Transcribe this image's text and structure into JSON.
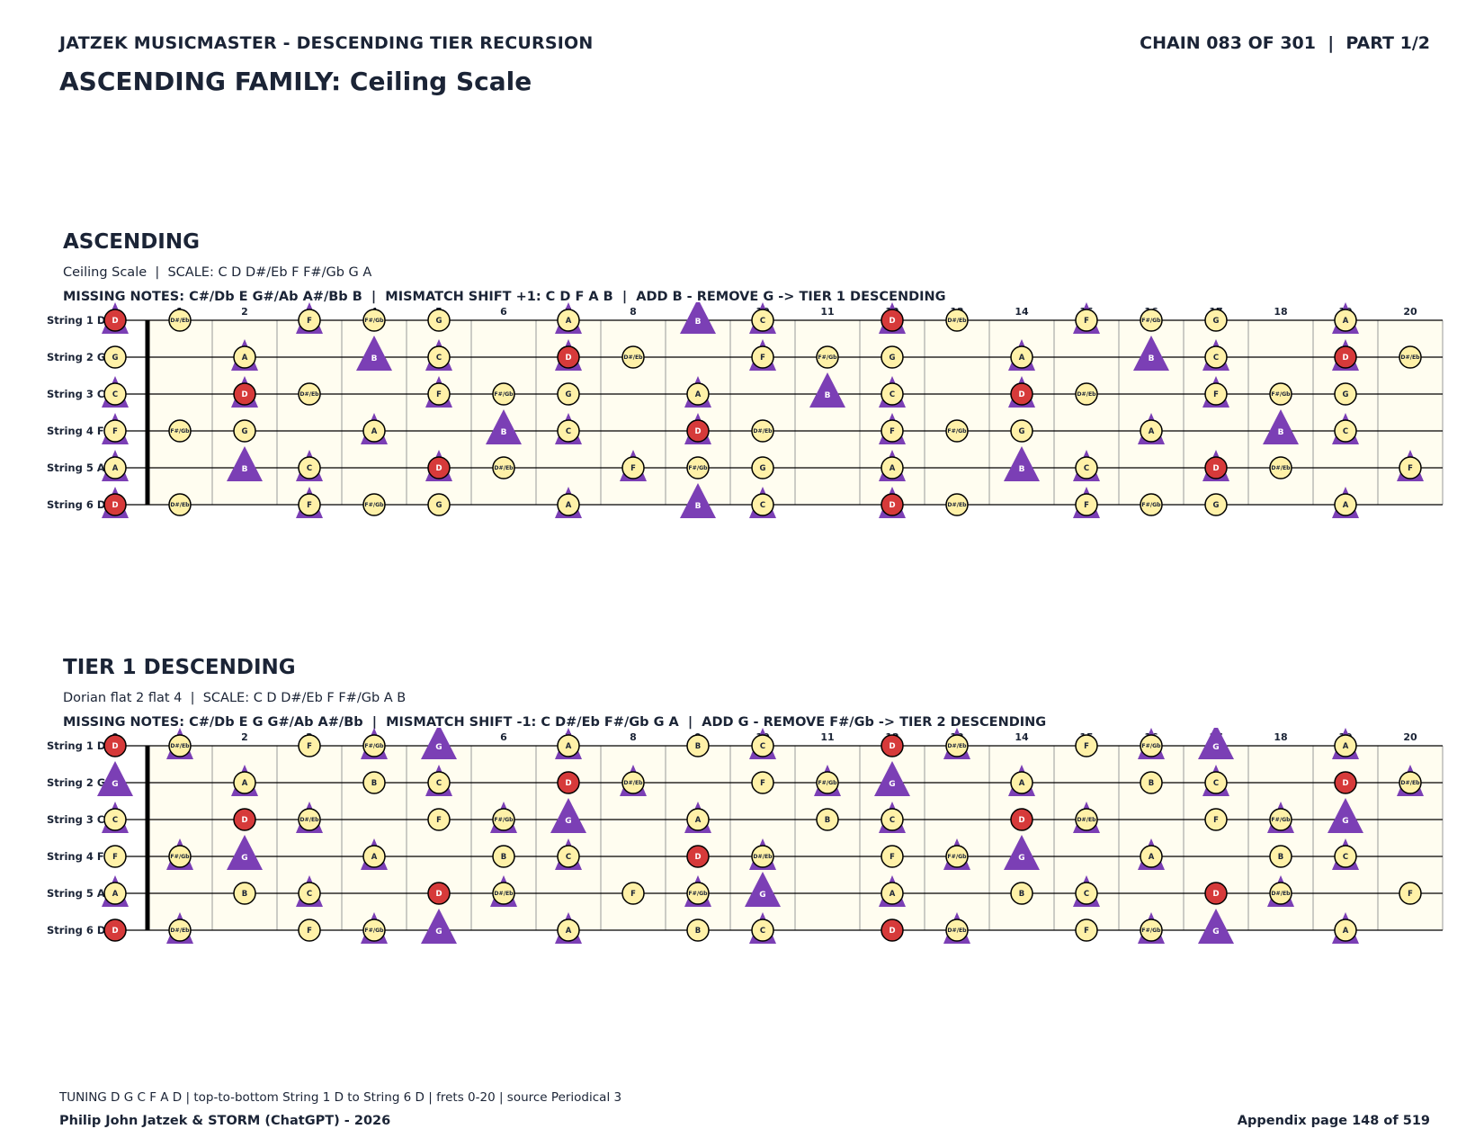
{
  "header": {
    "left": "JATZEK MUSICMASTER - DESCENDING TIER RECURSION",
    "right": "CHAIN 083 OF 301  |  PART 1/2"
  },
  "page_title": "ASCENDING FAMILY: Ceiling Scale",
  "tuning": [
    "D",
    "G",
    "C",
    "F",
    "A",
    "D"
  ],
  "string_labels": [
    "String 1 D",
    "String 2 G",
    "String 3 C",
    "String 4 F",
    "String 5 A",
    "String 6 D"
  ],
  "fret_numbers": [
    "0",
    "1",
    "2",
    "3",
    "4",
    "5",
    "6",
    "7",
    "8",
    "9",
    "10",
    "11",
    "12",
    "13",
    "14",
    "15",
    "16",
    "17",
    "18",
    "19",
    "20"
  ],
  "colors": {
    "root": "#d63a3a",
    "scale_note": "#fff1a8",
    "added_marker": "#7b3fb5",
    "board_bg": "#fffdf0",
    "ink": "#1b2436"
  },
  "sections": [
    {
      "title": "ASCENDING",
      "subtitle": "Ceiling Scale  |  SCALE: C D D#/Eb F F#/Gb G A",
      "missing": "MISSING NOTES: C#/Db E G#/Ab A#/Bb B  |  MISMATCH SHIFT +1: C D F A B  |  ADD B - REMOVE G -> TIER 1 DESCENDING",
      "root": "D",
      "scale": [
        "C",
        "D",
        "D#/Eb",
        "F",
        "F#/Gb",
        "G",
        "A"
      ],
      "shift_notes": [
        "C",
        "D",
        "F",
        "A",
        "B"
      ]
    },
    {
      "title": "TIER 1 DESCENDING",
      "subtitle": "Dorian flat 2 flat 4  |  SCALE: C D D#/Eb F F#/Gb A B",
      "missing": "MISSING NOTES: C#/Db E G G#/Ab A#/Bb  |  MISMATCH SHIFT -1: C D#/Eb F#/Gb G A  |  ADD G - REMOVE F#/Gb -> TIER 2 DESCENDING",
      "root": "D",
      "scale": [
        "C",
        "D",
        "D#/Eb",
        "F",
        "F#/Gb",
        "A",
        "B"
      ],
      "shift_notes": [
        "C",
        "D#/Eb",
        "F#/Gb",
        "G",
        "A"
      ]
    }
  ],
  "footer": {
    "note": "TUNING D G C F A D | top-to-bottom String 1 D to String 6 D | frets 0-20 | source Periodical 3",
    "author": "Philip John Jatzek & STORM (ChatGPT) - 2026",
    "page": "Appendix page 148 of 519"
  }
}
